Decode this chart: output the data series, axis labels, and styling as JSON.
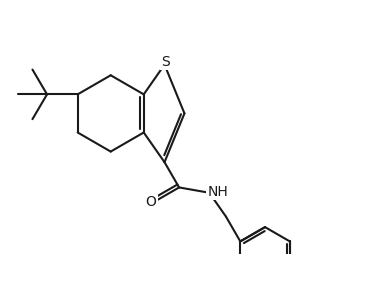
{
  "background_color": "#ffffff",
  "line_color": "#1a1a1a",
  "line_width": 1.5,
  "figsize": [
    3.66,
    2.84
  ],
  "dpi": 100,
  "xlim": [
    0.0,
    6.5
  ],
  "ylim": [
    0.5,
    5.0
  ]
}
